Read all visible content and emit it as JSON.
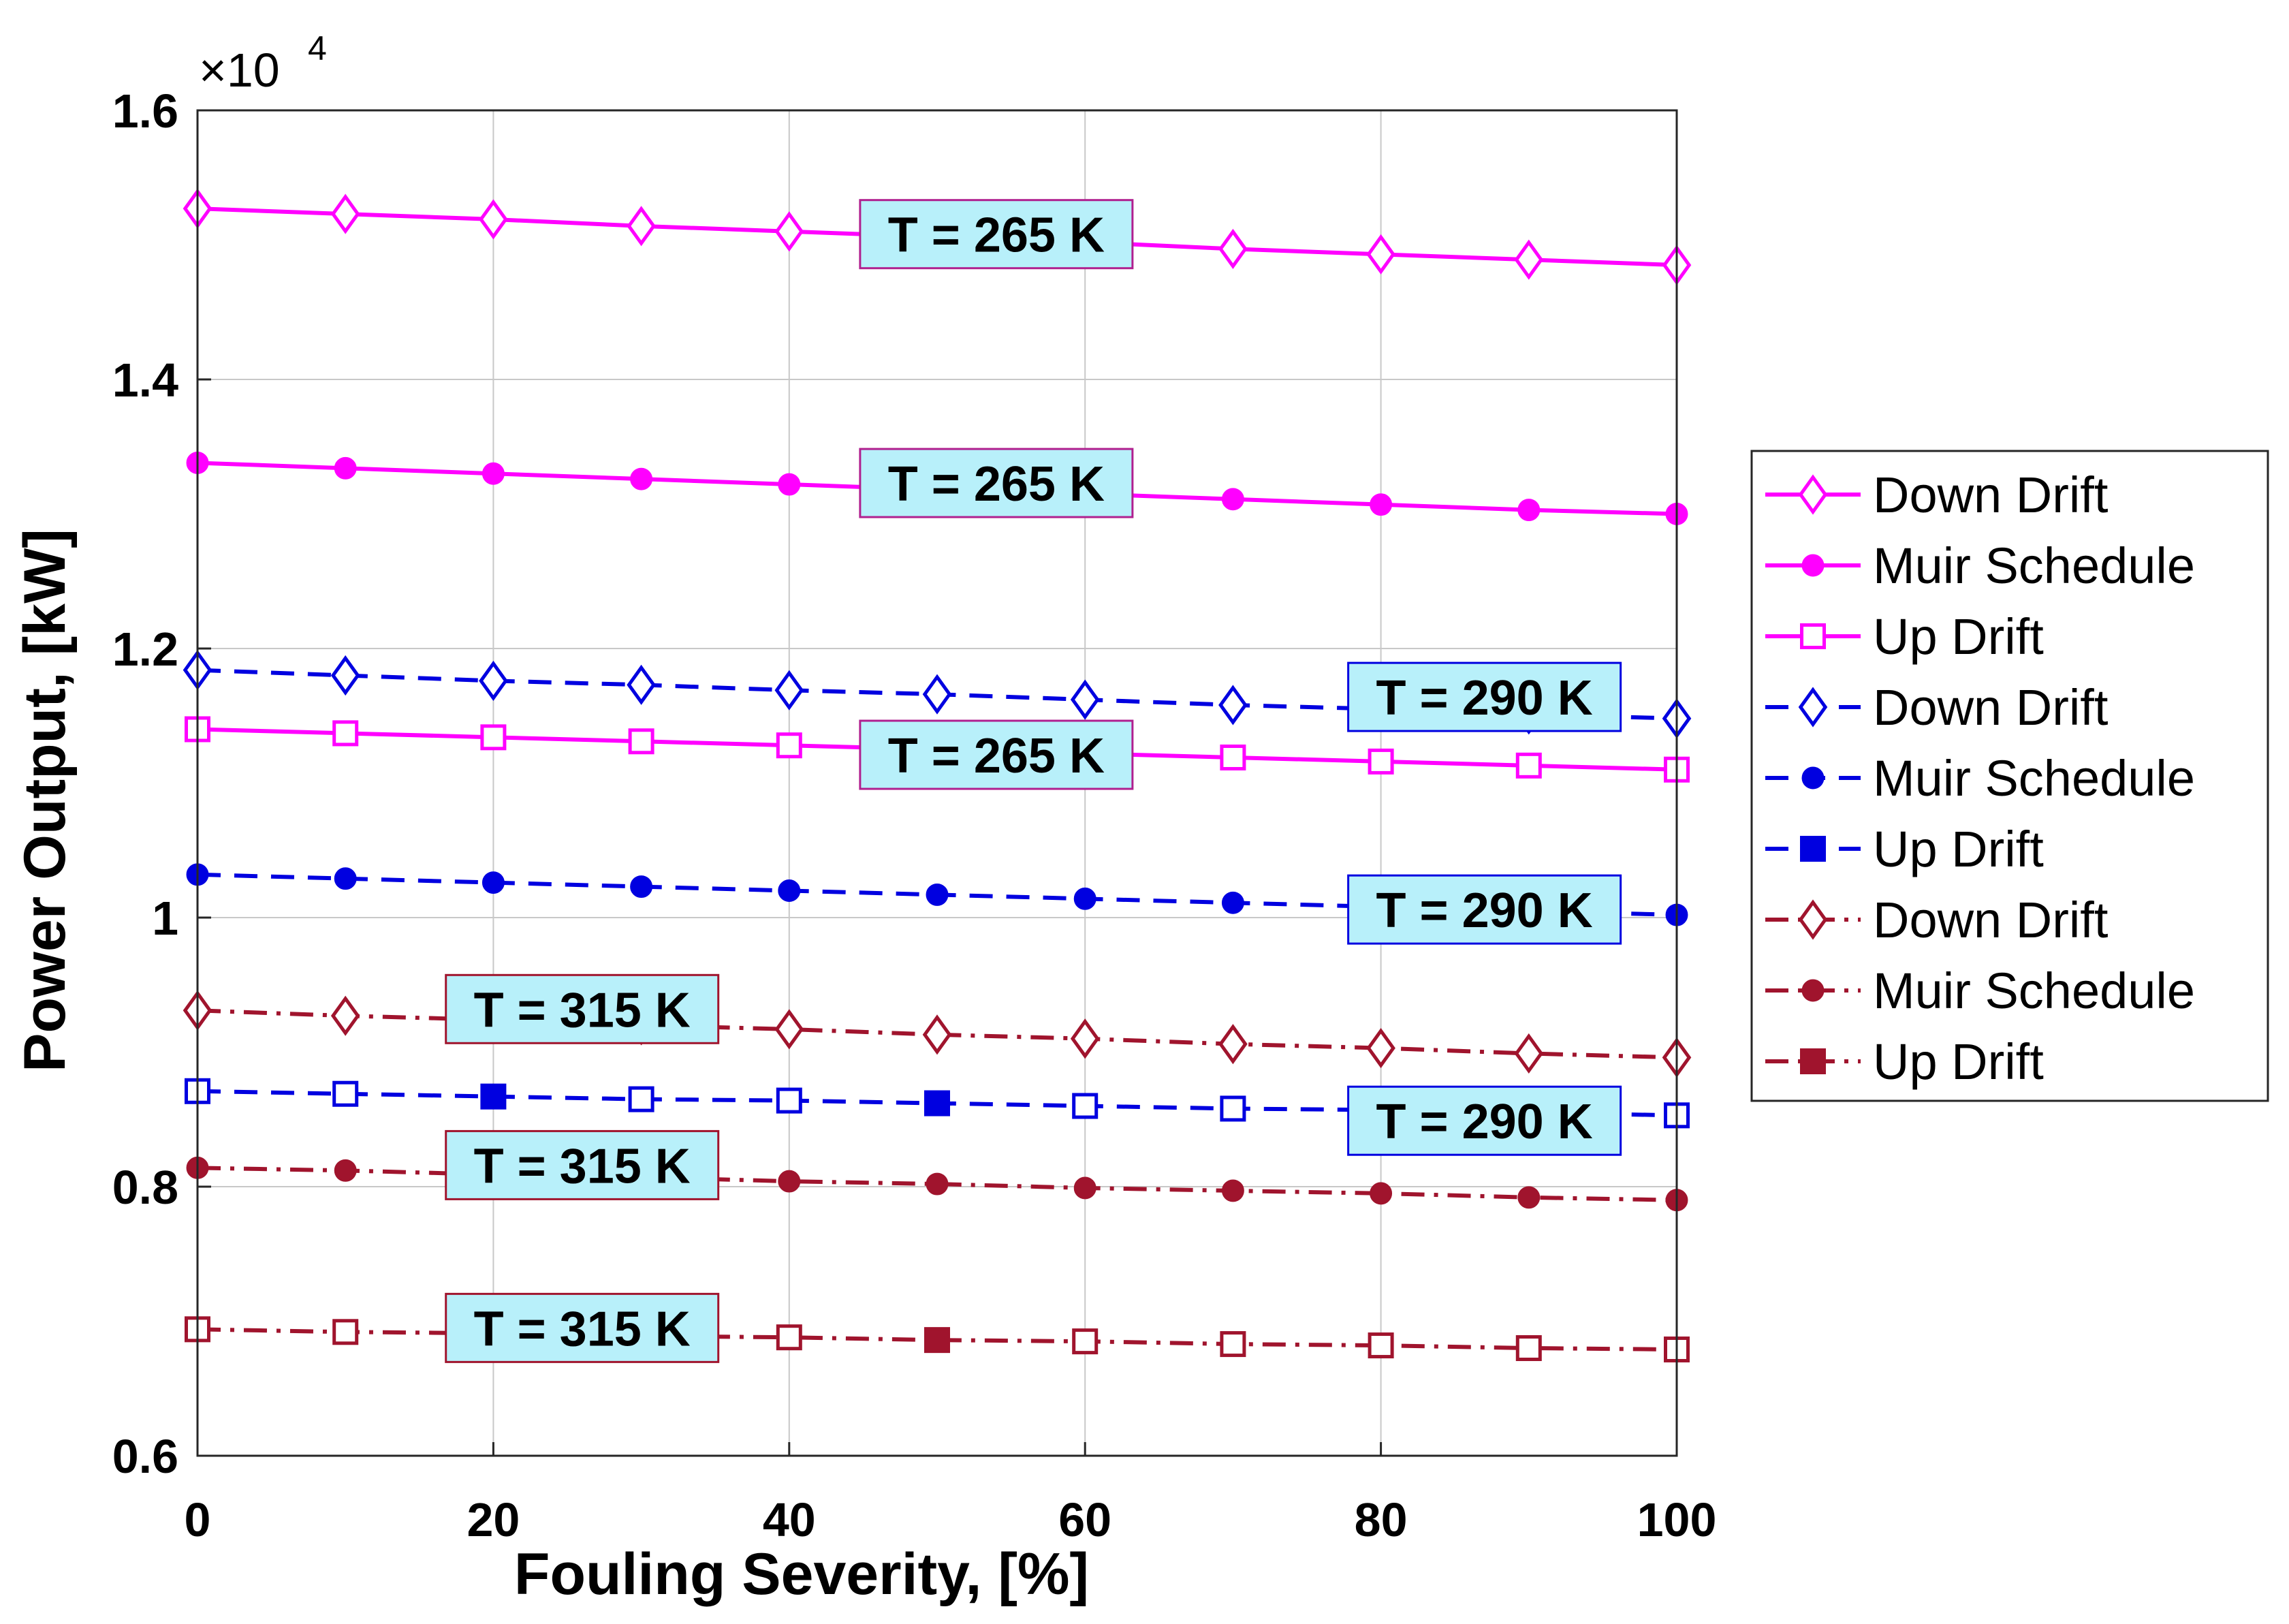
{
  "chart_data": {
    "type": "line",
    "title": "",
    "xlabel": "Fouling Severity, [%]",
    "ylabel": "Power Output, [kW]",
    "xlim": [
      0,
      100
    ],
    "ylim": [
      0.6,
      1.6
    ],
    "y_scale_note": "×10^4",
    "y_scale_base": "×10",
    "y_scale_exponent": "4",
    "grid": true,
    "legend_position": "outside-right",
    "xticks": [
      0,
      20,
      40,
      60,
      80,
      100
    ],
    "xtick_labels": [
      "0",
      "20",
      "40",
      "60",
      "80",
      "100"
    ],
    "yticks": [
      0.6,
      0.8,
      1.0,
      1.2,
      1.4,
      1.6
    ],
    "ytick_labels": [
      "0.6",
      "0.8",
      "1",
      "1.2",
      "1.4",
      "1.6"
    ],
    "x": [
      0,
      10,
      20,
      30,
      40,
      50,
      60,
      70,
      80,
      90,
      100
    ],
    "series": [
      {
        "name": "Down Drift",
        "group": "T = 265 K",
        "color": "#FF00FF",
        "line": "solid",
        "marker": "diamond",
        "marker_fill": "open",
        "values": [
          1.527,
          1.523,
          1.519,
          1.514,
          1.51,
          1.506,
          1.502,
          1.497,
          1.493,
          1.489,
          1.485
        ]
      },
      {
        "name": "Muir Schedule",
        "group": "T = 265 K",
        "color": "#FF00FF",
        "line": "solid",
        "marker": "circle",
        "marker_fill": "filled",
        "values": [
          1.338,
          1.334,
          1.33,
          1.326,
          1.322,
          1.318,
          1.315,
          1.311,
          1.307,
          1.303,
          1.3
        ]
      },
      {
        "name": "Up Drift",
        "group": "T = 265 K",
        "color": "#FF00FF",
        "line": "solid",
        "marker": "square",
        "marker_fill": "open",
        "values": [
          1.14,
          1.137,
          1.134,
          1.131,
          1.128,
          1.125,
          1.122,
          1.119,
          1.116,
          1.113,
          1.11
        ]
      },
      {
        "name": "Down Drift",
        "group": "T = 290 K",
        "color": "#0000E0",
        "line": "dashed",
        "marker": "diamond",
        "marker_fill": "open",
        "values": [
          1.184,
          1.18,
          1.176,
          1.173,
          1.169,
          1.166,
          1.162,
          1.158,
          1.155,
          1.151,
          1.148
        ]
      },
      {
        "name": "Muir Schedule",
        "group": "T = 290 K",
        "color": "#0000E0",
        "line": "dashed",
        "marker": "circle",
        "marker_fill": "filled",
        "values": [
          1.032,
          1.029,
          1.026,
          1.023,
          1.02,
          1.017,
          1.014,
          1.011,
          1.008,
          1.005,
          1.002
        ]
      },
      {
        "name": "Up Drift",
        "group": "T = 290 K",
        "color": "#0000E0",
        "line": "dashed",
        "marker": "square",
        "marker_fill": "mixed",
        "values": [
          0.871,
          0.869,
          0.867,
          0.865,
          0.864,
          0.862,
          0.86,
          0.858,
          0.857,
          0.855,
          0.853
        ]
      },
      {
        "name": "Down Drift",
        "group": "T = 315 K",
        "color": "#A0142D",
        "line": "dashdot",
        "marker": "diamond",
        "marker_fill": "open",
        "values": [
          0.931,
          0.927,
          0.924,
          0.92,
          0.917,
          0.913,
          0.91,
          0.906,
          0.903,
          0.899,
          0.896
        ]
      },
      {
        "name": "Muir Schedule",
        "group": "T = 315 K",
        "color": "#A0142D",
        "line": "dashdot",
        "marker": "circle",
        "marker_fill": "filled",
        "values": [
          0.814,
          0.812,
          0.809,
          0.807,
          0.804,
          0.802,
          0.799,
          0.797,
          0.795,
          0.792,
          0.79
        ]
      },
      {
        "name": "Up Drift",
        "group": "T = 315 K",
        "color": "#A0142D",
        "line": "dashdot",
        "marker": "square",
        "marker_fill": "mixed",
        "values": [
          0.694,
          0.692,
          0.691,
          0.689,
          0.688,
          0.686,
          0.685,
          0.683,
          0.682,
          0.68,
          0.679
        ]
      }
    ],
    "legend_entries": [
      "Down Drift",
      "Muir Schedule",
      "Up Drift",
      "Down Drift",
      "Muir Schedule",
      "Up Drift",
      "Down Drift",
      "Muir Schedule",
      "Up Drift"
    ],
    "annotations": [
      {
        "text": "T = 265 K",
        "series_index": 0,
        "x": 54,
        "y": 1.508,
        "border": "#B0208F"
      },
      {
        "text": "T = 265 K",
        "series_index": 1,
        "x": 54,
        "y": 1.323,
        "border": "#B0208F"
      },
      {
        "text": "T = 265 K",
        "series_index": 2,
        "x": 54,
        "y": 1.121,
        "border": "#B0208F"
      },
      {
        "text": "T = 290 K",
        "series_index": 3,
        "x": 87,
        "y": 1.164,
        "border": "#0000E0"
      },
      {
        "text": "T = 290 K",
        "series_index": 4,
        "x": 87,
        "y": 1.006,
        "border": "#0000E0"
      },
      {
        "text": "T = 290 K",
        "series_index": 5,
        "x": 87,
        "y": 0.849,
        "border": "#0000E0"
      },
      {
        "text": "T = 315 K",
        "series_index": 6,
        "x": 26,
        "y": 0.932,
        "border": "#A0142D"
      },
      {
        "text": "T = 315 K",
        "series_index": 7,
        "x": 26,
        "y": 0.816,
        "border": "#A0142D"
      },
      {
        "text": "T = 315 K",
        "series_index": 8,
        "x": 26,
        "y": 0.695,
        "border": "#A0142D"
      }
    ],
    "annotation_fill": "#B8F0FA"
  }
}
